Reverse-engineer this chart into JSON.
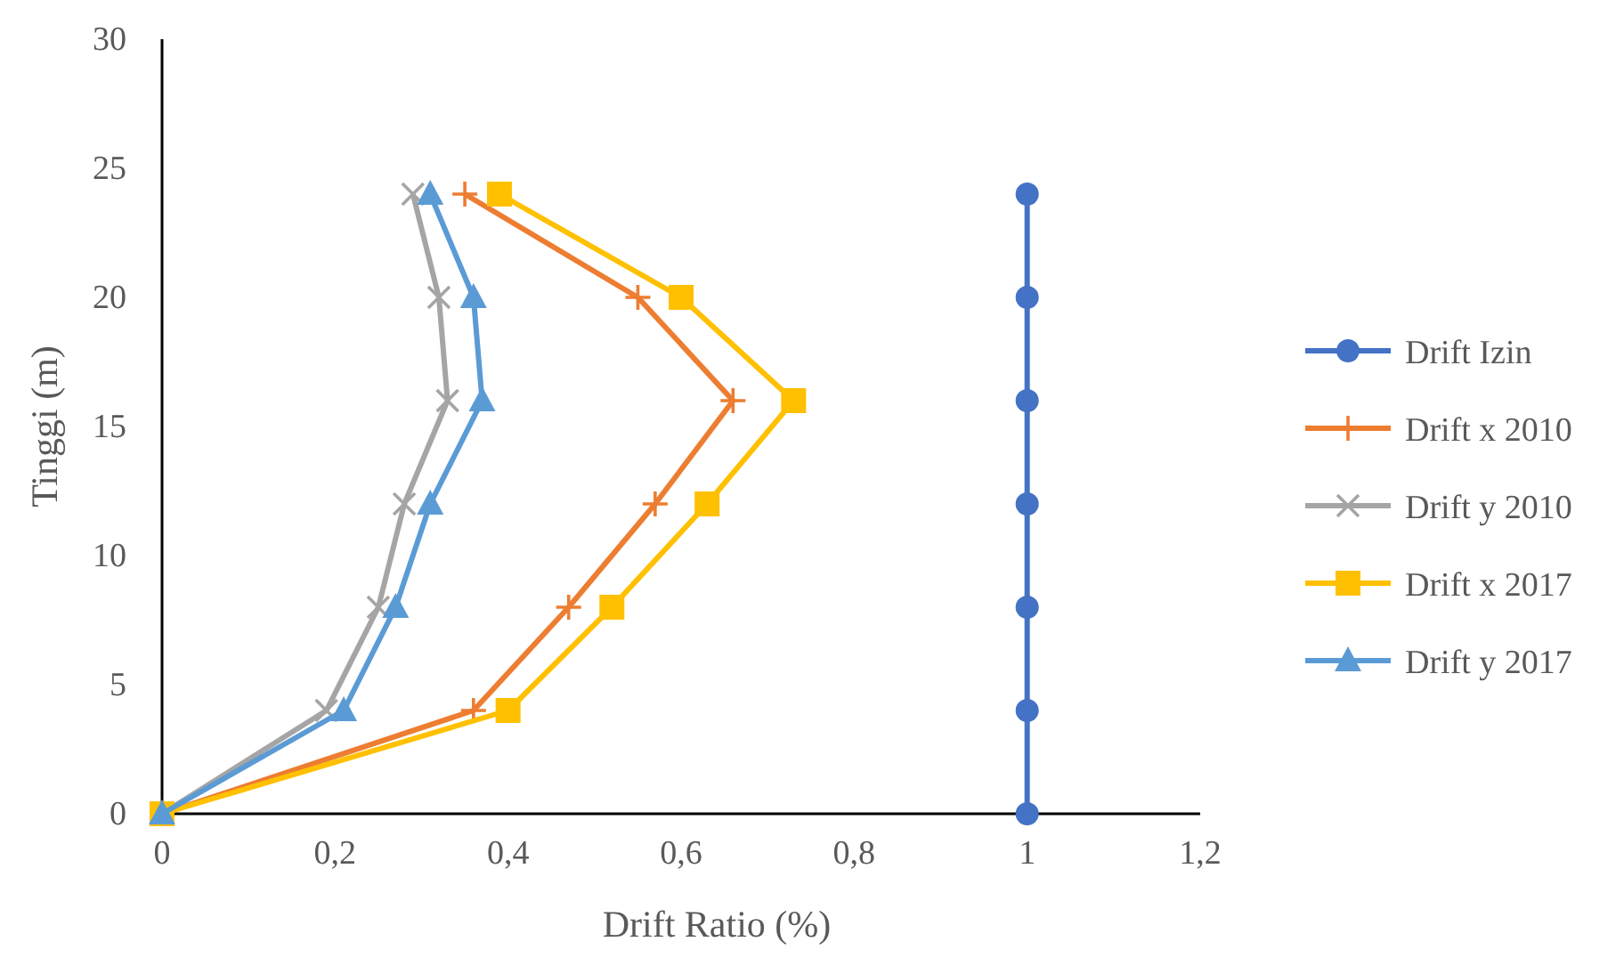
{
  "chart_data": {
    "type": "line",
    "xlabel": "Drift Ratio (%)",
    "ylabel": "Tinggi (m)",
    "xlim": [
      0,
      1.2
    ],
    "xticks": [
      0,
      {
        "value": 0.2,
        "label": "0,2"
      },
      {
        "value": 0.4,
        "label": "0,4"
      },
      {
        "value": 0.6,
        "label": "0,6"
      },
      {
        "value": 0.8,
        "label": "0,8"
      },
      1,
      {
        "value": 1.2,
        "label": "1,2"
      }
    ],
    "ylim": [
      0,
      30
    ],
    "yticks": [
      0,
      5,
      10,
      15,
      20,
      25,
      30
    ],
    "grid": false,
    "legend": "right",
    "series": [
      {
        "name": "Drift Izin",
        "color": "#4472c4",
        "marker": "circle",
        "x": [
          1,
          1,
          1,
          1,
          1,
          1,
          1
        ],
        "values": [
          0,
          4,
          8,
          12,
          16,
          20,
          24
        ]
      },
      {
        "name": "Drift x 2010",
        "color": "#ed7d31",
        "marker": "cross",
        "x": [
          0,
          0.36,
          0.47,
          0.57,
          0.66,
          0.55,
          0.35
        ],
        "values": [
          0,
          4,
          8,
          12,
          16,
          20,
          24
        ]
      },
      {
        "name": "Drift y 2010",
        "color": "#a5a5a5",
        "marker": "x",
        "x": [
          0,
          0.19,
          0.25,
          0.28,
          0.33,
          0.32,
          0.29
        ],
        "values": [
          0,
          4,
          8,
          12,
          16,
          20,
          24
        ]
      },
      {
        "name": "Drift x 2017",
        "color": "#ffc000",
        "marker": "square",
        "x": [
          0,
          0.4,
          0.52,
          0.63,
          0.73,
          0.6,
          0.39
        ],
        "values": [
          0,
          4,
          8,
          12,
          16,
          20,
          24
        ]
      },
      {
        "name": "Drift y 2017",
        "color": "#5b9bd5",
        "marker": "triangle",
        "x": [
          0,
          0.21,
          0.27,
          0.31,
          0.37,
          0.36,
          0.31
        ],
        "values": [
          0,
          4,
          8,
          12,
          16,
          20,
          24
        ]
      }
    ]
  }
}
